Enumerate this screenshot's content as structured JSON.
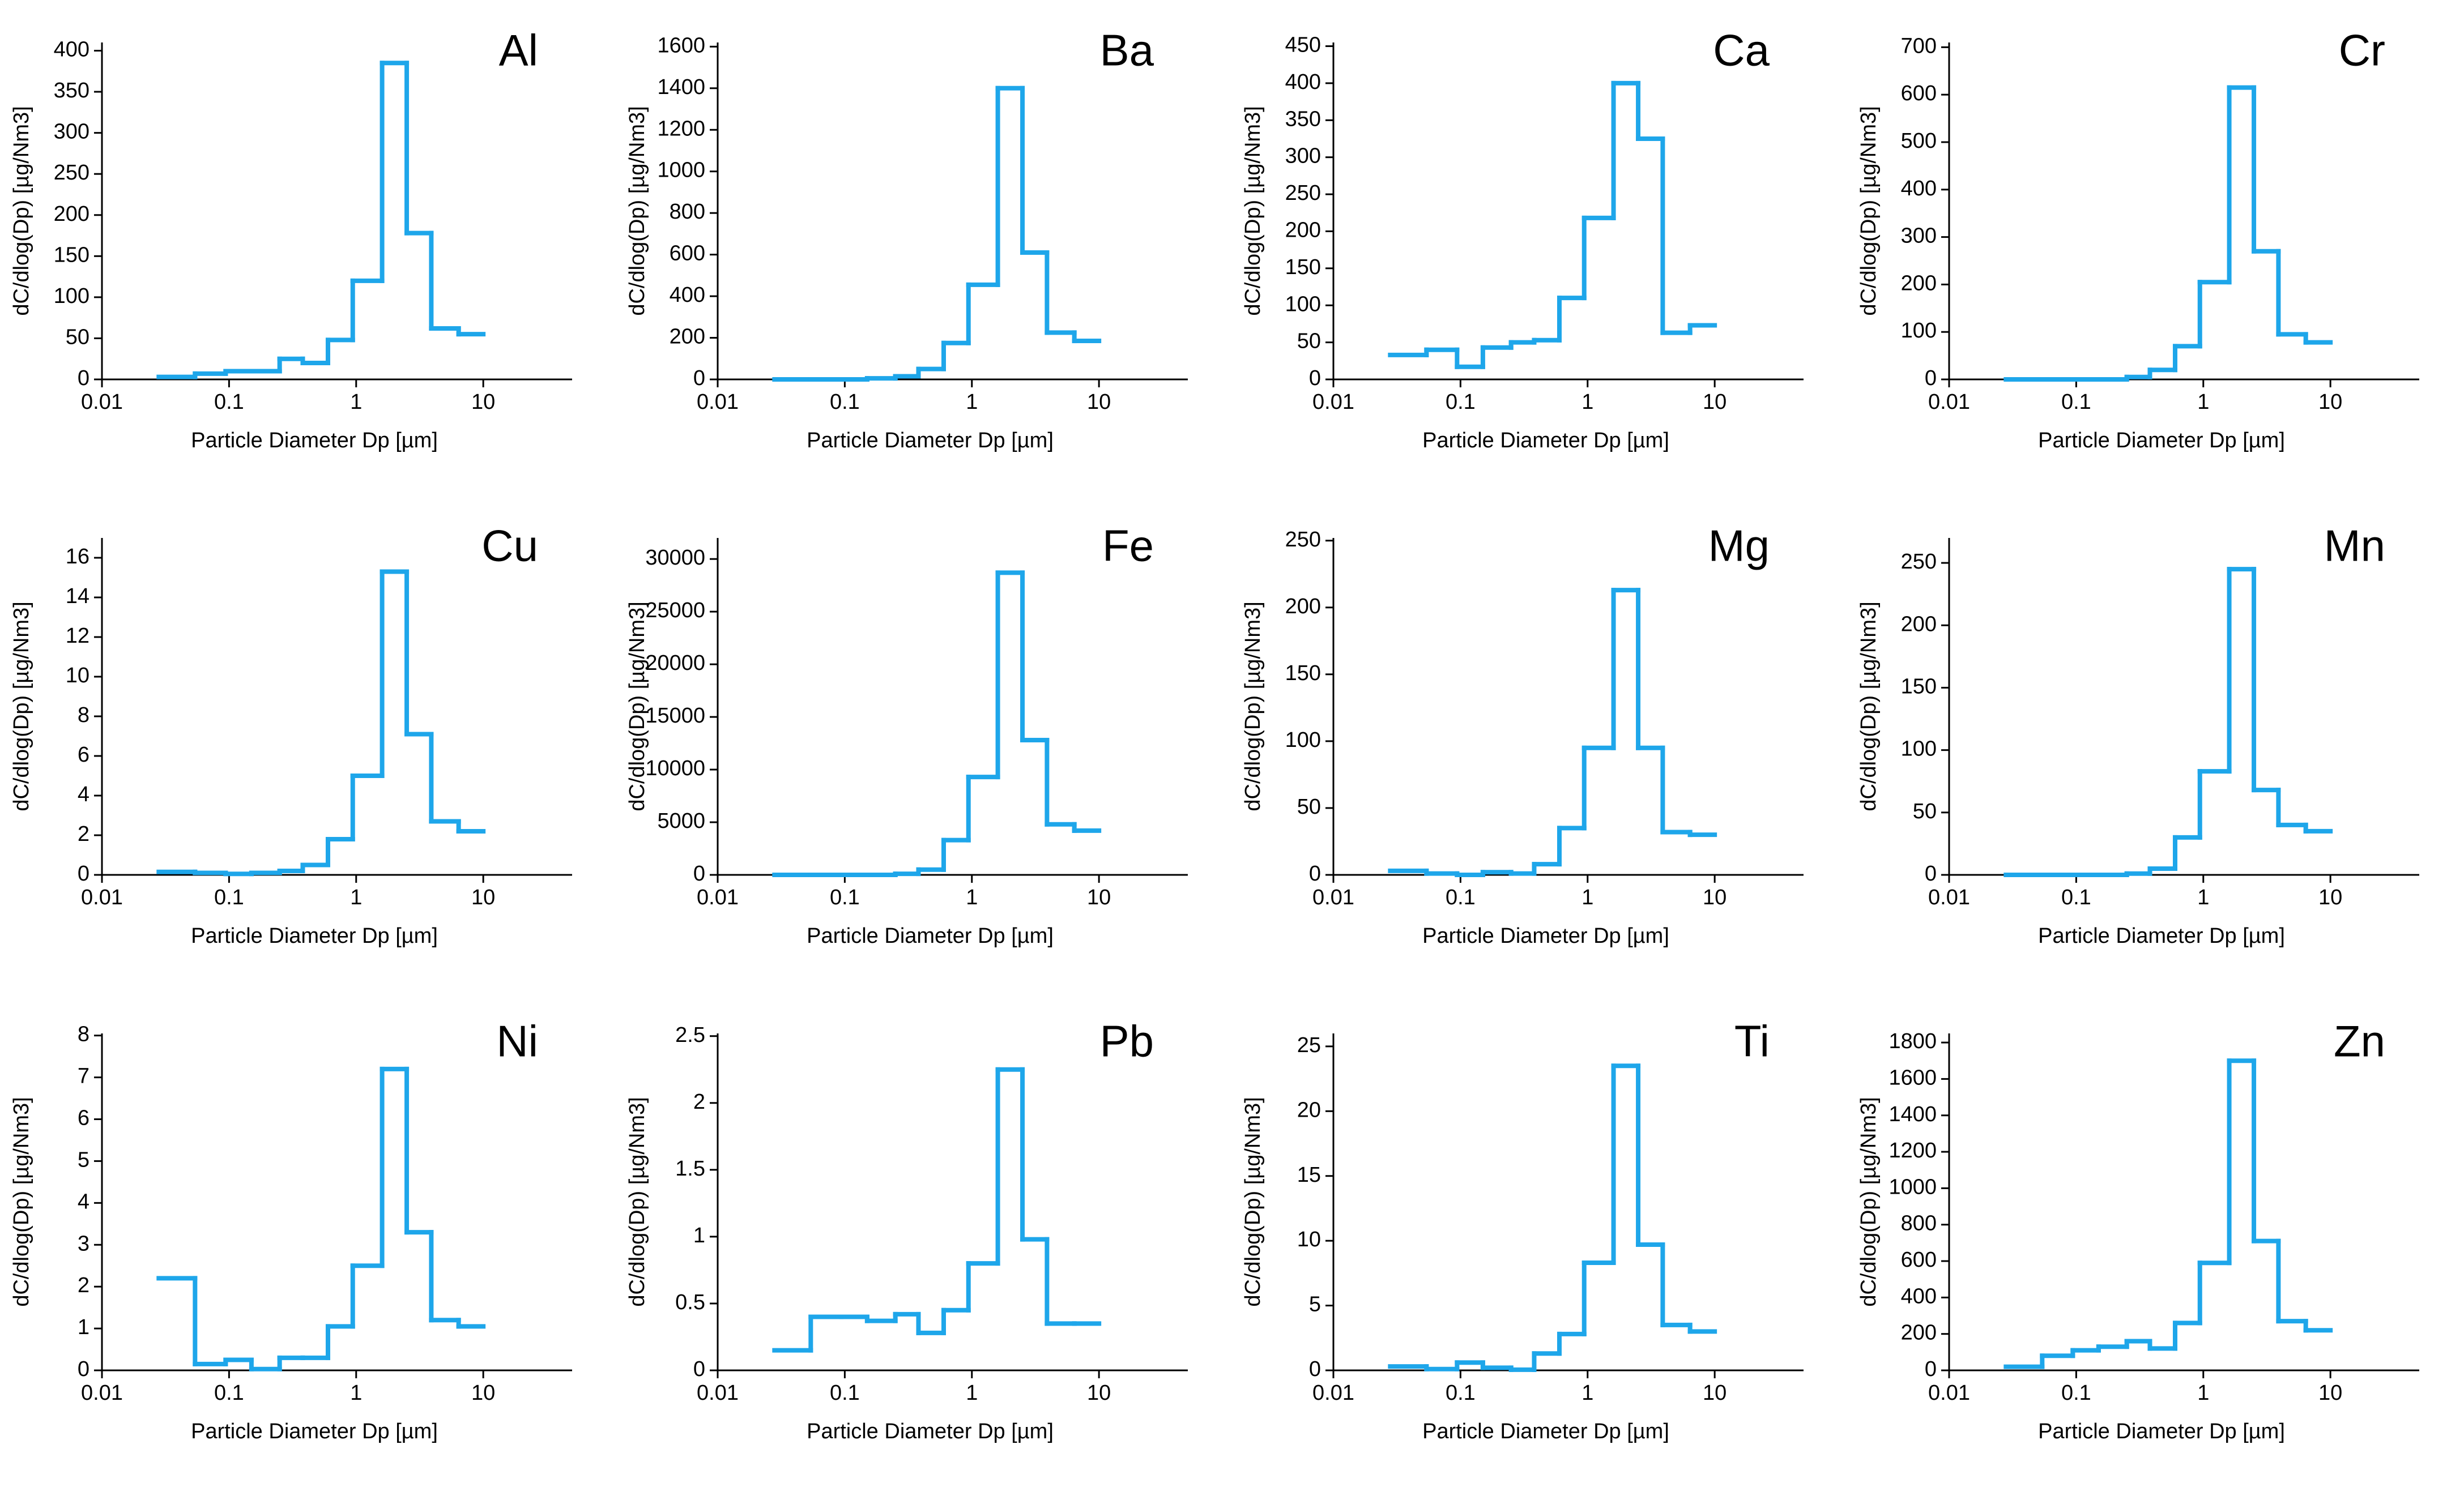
{
  "chart_data": [
    {
      "type": "histogram",
      "label": "Al",
      "bins": [
        0.028,
        0.054,
        0.094,
        0.15,
        0.25,
        0.38,
        0.6,
        0.94,
        1.6,
        2.5,
        3.9,
        6.4,
        10
      ],
      "counts": [
        3,
        7,
        10,
        10,
        25,
        20,
        48,
        120,
        385,
        178,
        62,
        55
      ],
      "color": "#1ea6ea",
      "xscale": "log",
      "xlim": [
        0.01,
        50
      ],
      "xticks": [
        0.01,
        0.1,
        1,
        10
      ],
      "ylim": [
        0,
        410
      ],
      "yticks": [
        0,
        50,
        100,
        150,
        200,
        250,
        300,
        350,
        400
      ],
      "x_label": "Particle Diameter Dp [µm]",
      "y_label": "dC/dlog(Dp) [µg/Nm3]"
    },
    {
      "type": "histogram",
      "label": "Ba",
      "bins": [
        0.028,
        0.054,
        0.094,
        0.15,
        0.25,
        0.38,
        0.6,
        0.94,
        1.6,
        2.5,
        3.9,
        6.4,
        10
      ],
      "counts": [
        0,
        0,
        0,
        5,
        15,
        50,
        175,
        455,
        1400,
        610,
        225,
        185
      ],
      "color": "#1ea6ea",
      "xscale": "log",
      "xlim": [
        0.01,
        50
      ],
      "xticks": [
        0.01,
        0.1,
        1,
        10
      ],
      "ylim": [
        0,
        1620
      ],
      "yticks": [
        0,
        200,
        400,
        600,
        800,
        1000,
        1200,
        1400,
        1600
      ],
      "x_label": "Particle Diameter Dp [µm]",
      "y_label": "dC/dlog(Dp) [µg/Nm3]"
    },
    {
      "type": "histogram",
      "label": "Ca",
      "bins": [
        0.028,
        0.054,
        0.094,
        0.15,
        0.25,
        0.38,
        0.6,
        0.94,
        1.6,
        2.5,
        3.9,
        6.4,
        10
      ],
      "counts": [
        33,
        40,
        17,
        43,
        50,
        53,
        110,
        218,
        400,
        325,
        63,
        73
      ],
      "color": "#1ea6ea",
      "xscale": "log",
      "xlim": [
        0.01,
        50
      ],
      "xticks": [
        0.01,
        0.1,
        1,
        10
      ],
      "ylim": [
        0,
        455
      ],
      "yticks": [
        0,
        50,
        100,
        150,
        200,
        250,
        300,
        350,
        400,
        450
      ],
      "x_label": "Particle Diameter Dp [µm]",
      "y_label": "dC/dlog(Dp) [µg/Nm3]"
    },
    {
      "type": "histogram",
      "label": "Cr",
      "bins": [
        0.028,
        0.054,
        0.094,
        0.15,
        0.25,
        0.38,
        0.6,
        0.94,
        1.6,
        2.5,
        3.9,
        6.4,
        10
      ],
      "counts": [
        0,
        0,
        0,
        0,
        5,
        20,
        70,
        205,
        615,
        270,
        95,
        78
      ],
      "color": "#1ea6ea",
      "xscale": "log",
      "xlim": [
        0.01,
        50
      ],
      "xticks": [
        0.01,
        0.1,
        1,
        10
      ],
      "ylim": [
        0,
        710
      ],
      "yticks": [
        0,
        100,
        200,
        300,
        400,
        500,
        600,
        700
      ],
      "x_label": "Particle Diameter Dp [µm]",
      "y_label": "dC/dlog(Dp) [µg/Nm3]"
    },
    {
      "type": "histogram",
      "label": "Cu",
      "bins": [
        0.028,
        0.054,
        0.094,
        0.15,
        0.25,
        0.38,
        0.6,
        0.94,
        1.6,
        2.5,
        3.9,
        6.4,
        10
      ],
      "counts": [
        0.15,
        0.1,
        0.05,
        0.1,
        0.2,
        0.5,
        1.8,
        5,
        15.3,
        7.1,
        2.7,
        2.2
      ],
      "color": "#1ea6ea",
      "xscale": "log",
      "xlim": [
        0.01,
        50
      ],
      "xticks": [
        0.01,
        0.1,
        1,
        10
      ],
      "ylim": [
        0,
        17
      ],
      "yticks": [
        0,
        2,
        4,
        6,
        8,
        10,
        12,
        14,
        16
      ],
      "x_label": "Particle Diameter Dp [µm]",
      "y_label": "dC/dlog(Dp) [µg/Nm3]"
    },
    {
      "type": "histogram",
      "label": "Fe",
      "bins": [
        0.028,
        0.054,
        0.094,
        0.15,
        0.25,
        0.38,
        0.6,
        0.94,
        1.6,
        2.5,
        3.9,
        6.4,
        10
      ],
      "counts": [
        0,
        0,
        0,
        0,
        100,
        500,
        3300,
        9300,
        28700,
        12800,
        4800,
        4200
      ],
      "color": "#1ea6ea",
      "xscale": "log",
      "xlim": [
        0.01,
        50
      ],
      "xticks": [
        0.01,
        0.1,
        1,
        10
      ],
      "ylim": [
        0,
        32000
      ],
      "yticks": [
        0,
        5000,
        10000,
        15000,
        20000,
        25000,
        30000
      ],
      "x_label": "Particle Diameter Dp [µm]",
      "y_label": "dC/dlog(Dp) [µg/Nm3]"
    },
    {
      "type": "histogram",
      "label": "Mg",
      "bins": [
        0.028,
        0.054,
        0.094,
        0.15,
        0.25,
        0.38,
        0.6,
        0.94,
        1.6,
        2.5,
        3.9,
        6.4,
        10
      ],
      "counts": [
        3,
        1,
        0,
        2,
        1,
        8,
        35,
        95,
        213,
        95,
        32,
        30
      ],
      "color": "#1ea6ea",
      "xscale": "log",
      "xlim": [
        0.01,
        50
      ],
      "xticks": [
        0.01,
        0.1,
        1,
        10
      ],
      "ylim": [
        0,
        252
      ],
      "yticks": [
        0,
        50,
        100,
        150,
        200,
        250
      ],
      "x_label": "Particle Diameter Dp [µm]",
      "y_label": "dC/dlog(Dp) [µg/Nm3]"
    },
    {
      "type": "histogram",
      "label": "Mn",
      "bins": [
        0.028,
        0.054,
        0.094,
        0.15,
        0.25,
        0.38,
        0.6,
        0.94,
        1.6,
        2.5,
        3.9,
        6.4,
        10
      ],
      "counts": [
        0,
        0,
        0,
        0,
        1,
        5,
        30,
        83,
        245,
        68,
        40,
        35
      ],
      "color": "#1ea6ea",
      "xscale": "log",
      "xlim": [
        0.01,
        50
      ],
      "xticks": [
        0.01,
        0.1,
        1,
        10
      ],
      "ylim": [
        0,
        270
      ],
      "yticks": [
        0,
        50,
        100,
        150,
        200,
        250
      ],
      "x_label": "Particle Diameter Dp [µm]",
      "y_label": "dC/dlog(Dp) [µg/Nm3]"
    },
    {
      "type": "histogram",
      "label": "Ni",
      "bins": [
        0.028,
        0.054,
        0.094,
        0.15,
        0.25,
        0.38,
        0.6,
        0.94,
        1.6,
        2.5,
        3.9,
        6.4,
        10
      ],
      "counts": [
        2.2,
        0.15,
        0.25,
        0.03,
        0.3,
        0.3,
        1.05,
        2.5,
        7.2,
        3.3,
        1.2,
        1.05
      ],
      "color": "#1ea6ea",
      "xscale": "log",
      "xlim": [
        0.01,
        50
      ],
      "xticks": [
        0.01,
        0.1,
        1,
        10
      ],
      "ylim": [
        0,
        8.05
      ],
      "yticks": [
        0,
        1,
        2,
        3,
        4,
        5,
        6,
        7,
        8
      ],
      "x_label": "Particle Diameter Dp [µm]",
      "y_label": "dC/dlog(Dp) [µg/Nm3]"
    },
    {
      "type": "histogram",
      "label": "Pb",
      "bins": [
        0.028,
        0.054,
        0.094,
        0.15,
        0.25,
        0.38,
        0.6,
        0.94,
        1.6,
        2.5,
        3.9,
        6.4,
        10
      ],
      "counts": [
        0.15,
        0.4,
        0.4,
        0.37,
        0.42,
        0.28,
        0.45,
        0.8,
        2.25,
        0.98,
        0.35,
        0.35
      ],
      "color": "#1ea6ea",
      "xscale": "log",
      "xlim": [
        0.01,
        50
      ],
      "xticks": [
        0.01,
        0.1,
        1,
        10
      ],
      "ylim": [
        0,
        2.52
      ],
      "yticks": [
        0,
        0.5,
        1,
        1.5,
        2,
        2.5
      ],
      "x_label": "Particle Diameter Dp [µm]",
      "y_label": "dC/dlog(Dp) [µg/Nm3]"
    },
    {
      "type": "histogram",
      "label": "Ti",
      "bins": [
        0.028,
        0.054,
        0.094,
        0.15,
        0.25,
        0.38,
        0.6,
        0.94,
        1.6,
        2.5,
        3.9,
        6.4,
        10
      ],
      "counts": [
        0.3,
        0.1,
        0.6,
        0.2,
        0.05,
        1.3,
        2.8,
        8.3,
        23.5,
        9.7,
        3.5,
        3
      ],
      "color": "#1ea6ea",
      "xscale": "log",
      "xlim": [
        0.01,
        50
      ],
      "xticks": [
        0.01,
        0.1,
        1,
        10
      ],
      "ylim": [
        0,
        26
      ],
      "yticks": [
        0,
        5,
        10,
        15,
        20,
        25
      ],
      "x_label": "Particle Diameter Dp [µm]",
      "y_label": "dC/dlog(Dp) [µg/Nm3]"
    },
    {
      "type": "histogram",
      "label": "Zn",
      "bins": [
        0.028,
        0.054,
        0.094,
        0.15,
        0.25,
        0.38,
        0.6,
        0.94,
        1.6,
        2.5,
        3.9,
        6.4,
        10
      ],
      "counts": [
        20,
        80,
        110,
        130,
        160,
        120,
        260,
        590,
        1700,
        710,
        270,
        220
      ],
      "color": "#1ea6ea",
      "xscale": "log",
      "xlim": [
        0.01,
        50
      ],
      "xticks": [
        0.01,
        0.1,
        1,
        10
      ],
      "ylim": [
        0,
        1850
      ],
      "yticks": [
        0,
        200,
        400,
        600,
        800,
        1000,
        1200,
        1400,
        1600,
        1800
      ],
      "x_label": "Particle Diameter Dp [µm]",
      "y_label": "dC/dlog(Dp) [µg/Nm3]"
    }
  ]
}
